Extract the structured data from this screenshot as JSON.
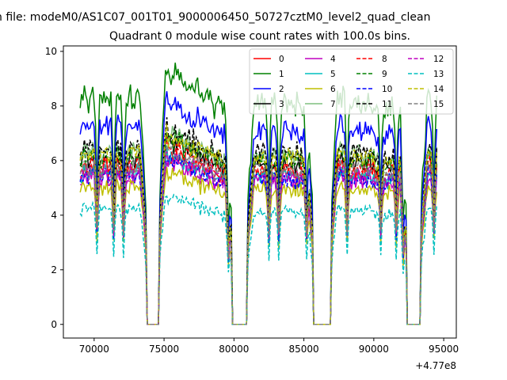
{
  "chart_data": {
    "type": "line",
    "suptitle": "n file: modeM0/AS1C07_001T01_9000006450_50727cztM0_level2_quad_clean",
    "title": "Quadrant 0 module wise count rates with 100.0s bins.",
    "xlabel": "",
    "ylabel": "",
    "offset_text": "+4.77e8",
    "x_offset": 477000000,
    "xlim": [
      67800,
      95900
    ],
    "ylim": [
      -0.5,
      10.2
    ],
    "x_ticks": [
      70000,
      75000,
      80000,
      85000,
      90000,
      95000
    ],
    "x_tick_labels": [
      "70000",
      "75000",
      "80000",
      "85000",
      "90000",
      "95000"
    ],
    "y_ticks": [
      0,
      2,
      4,
      6,
      8,
      10
    ],
    "y_tick_labels": [
      "0",
      "2",
      "4",
      "6",
      "8",
      "10"
    ],
    "x_start": 69000,
    "x_end": 94500,
    "bin_s": 100,
    "gaps": [
      [
        73700,
        74700
      ],
      [
        79800,
        81000
      ],
      [
        85600,
        87000
      ],
      [
        92300,
        93400
      ]
    ],
    "legend_position": "upper-right",
    "legend_columns": 4,
    "series": [
      {
        "name": "0",
        "color": "#ff0000",
        "dash": "solid",
        "base": 5.6
      },
      {
        "name": "1",
        "color": "#008000",
        "dash": "solid",
        "base": 8.2
      },
      {
        "name": "2",
        "color": "#0000ff",
        "dash": "solid",
        "base": 7.2
      },
      {
        "name": "3",
        "color": "#000000",
        "dash": "solid",
        "base": 6.0
      },
      {
        "name": "4",
        "color": "#bf00bf",
        "dash": "solid",
        "base": 5.3
      },
      {
        "name": "5",
        "color": "#00bfbf",
        "dash": "solid",
        "base": 5.5
      },
      {
        "name": "6",
        "color": "#bfbf00",
        "dash": "solid",
        "base": 5.0
      },
      {
        "name": "7",
        "color": "#7fbf7f",
        "dash": "solid",
        "base": 6.3
      },
      {
        "name": "8",
        "color": "#ff0000",
        "dash": "dashed",
        "base": 5.8
      },
      {
        "name": "9",
        "color": "#008000",
        "dash": "dashed",
        "base": 6.1
      },
      {
        "name": "10",
        "color": "#0000ff",
        "dash": "dashed",
        "base": 5.4
      },
      {
        "name": "11",
        "color": "#000000",
        "dash": "dashed",
        "base": 6.4
      },
      {
        "name": "12",
        "color": "#bf00bf",
        "dash": "dashed",
        "base": 5.5
      },
      {
        "name": "13",
        "color": "#00bfbf",
        "dash": "dashed",
        "base": 4.2
      },
      {
        "name": "14",
        "color": "#bfbf00",
        "dash": "dashed",
        "base": 6.2
      },
      {
        "name": "15",
        "color": "#808080",
        "dash": "dashed",
        "base": 5.7
      }
    ]
  }
}
